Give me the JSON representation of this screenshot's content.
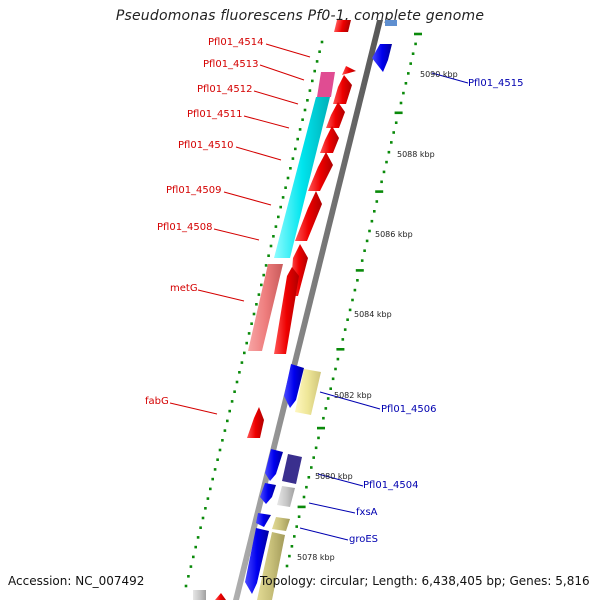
{
  "title": "Pseudomonas fluorescens Pf0-1, complete genome",
  "footer": {
    "accession": "Accession: NC_007492",
    "topology": "Topology: circular; Length: 6,438,405 bp; Genes: 5,816"
  },
  "genes_left": [
    "Pfl01_4514",
    "Pfl01_4513",
    "Pfl01_4512",
    "Pfl01_4511",
    "Pfl01_4510",
    "Pfl01_4509",
    "Pfl01_4508",
    "metG",
    "fabG"
  ],
  "genes_right": [
    "Pfl01_4515",
    "Pfl01_4506",
    "Pfl01_4504",
    "fxsA",
    "groES"
  ],
  "kbp_ticks": [
    "5090 kbp",
    "5088 kbp",
    "5086 kbp",
    "5084 kbp",
    "5082 kbp",
    "5080 kbp",
    "5078 kbp"
  ],
  "colors": {
    "forward_cds": "#ee0000",
    "reverse_cds": "#0000ee",
    "rna_cyan": "#00e5ee",
    "rna_pink": "#e04c92",
    "salmon": "#ee7d7d",
    "khaki": "#eee697",
    "dark_blue": "#3a2f8e",
    "gray_gene": "#c8c8c8",
    "olive": "#c8c07a",
    "backbone": "#808080",
    "ticks": "#0a8a0a"
  }
}
